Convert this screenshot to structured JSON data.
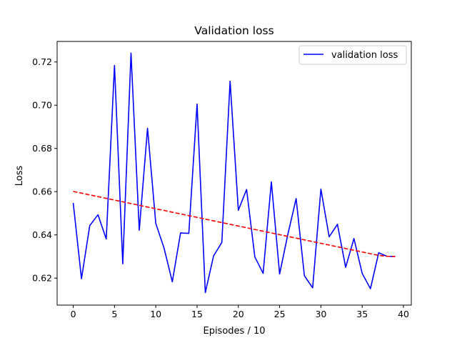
{
  "chart_data": {
    "type": "line",
    "title": "Validation loss",
    "xlabel": "Episodes / 10",
    "ylabel": "Loss",
    "xlim": [
      -1.95,
      40.95
    ],
    "ylim": [
      0.6075,
      0.7295
    ],
    "xticks": [
      0,
      5,
      10,
      15,
      20,
      25,
      30,
      35,
      40
    ],
    "yticks": [
      0.62,
      0.64,
      0.66,
      0.68,
      0.7,
      0.72
    ],
    "ytick_labels": [
      "0.62",
      "0.64",
      "0.66",
      "0.68",
      "0.70",
      "0.72"
    ],
    "grid": false,
    "legend_position": "top-right",
    "x": [
      0,
      1,
      2,
      3,
      4,
      5,
      6,
      7,
      8,
      9,
      10,
      11,
      12,
      13,
      14,
      15,
      16,
      17,
      18,
      19,
      20,
      21,
      22,
      23,
      24,
      25,
      26,
      27,
      28,
      29,
      30,
      31,
      32,
      33,
      34,
      35,
      36,
      37,
      38,
      39
    ],
    "series": [
      {
        "name": "validation loss",
        "color": "#0000ff",
        "style": "solid",
        "values": [
          0.6548,
          0.6197,
          0.6443,
          0.6493,
          0.6381,
          0.7184,
          0.6266,
          0.7241,
          0.6422,
          0.6893,
          0.6453,
          0.6339,
          0.6183,
          0.6409,
          0.6407,
          0.7005,
          0.6133,
          0.6303,
          0.6365,
          0.7111,
          0.6514,
          0.661,
          0.6298,
          0.6222,
          0.6645,
          0.6219,
          0.6403,
          0.6568,
          0.6211,
          0.6155,
          0.6612,
          0.6391,
          0.6449,
          0.625,
          0.6383,
          0.6222,
          0.6151,
          0.6317,
          0.6301,
          0.63
        ]
      },
      {
        "color": "#ff0000",
        "style": "dashed",
        "values": [
          0.6601,
          0.6593,
          0.6585,
          0.6577,
          0.6569,
          0.6561,
          0.6553,
          0.6545,
          0.6537,
          0.6529,
          0.6521,
          0.6513,
          0.6505,
          0.6497,
          0.6489,
          0.6481,
          0.6473,
          0.6465,
          0.6457,
          0.6449,
          0.6441,
          0.6433,
          0.6425,
          0.6417,
          0.6409,
          0.6401,
          0.6393,
          0.6385,
          0.6377,
          0.6369,
          0.6361,
          0.6353,
          0.6345,
          0.6337,
          0.6329,
          0.6321,
          0.6313,
          0.6305,
          0.6301,
          0.63
        ]
      }
    ]
  }
}
